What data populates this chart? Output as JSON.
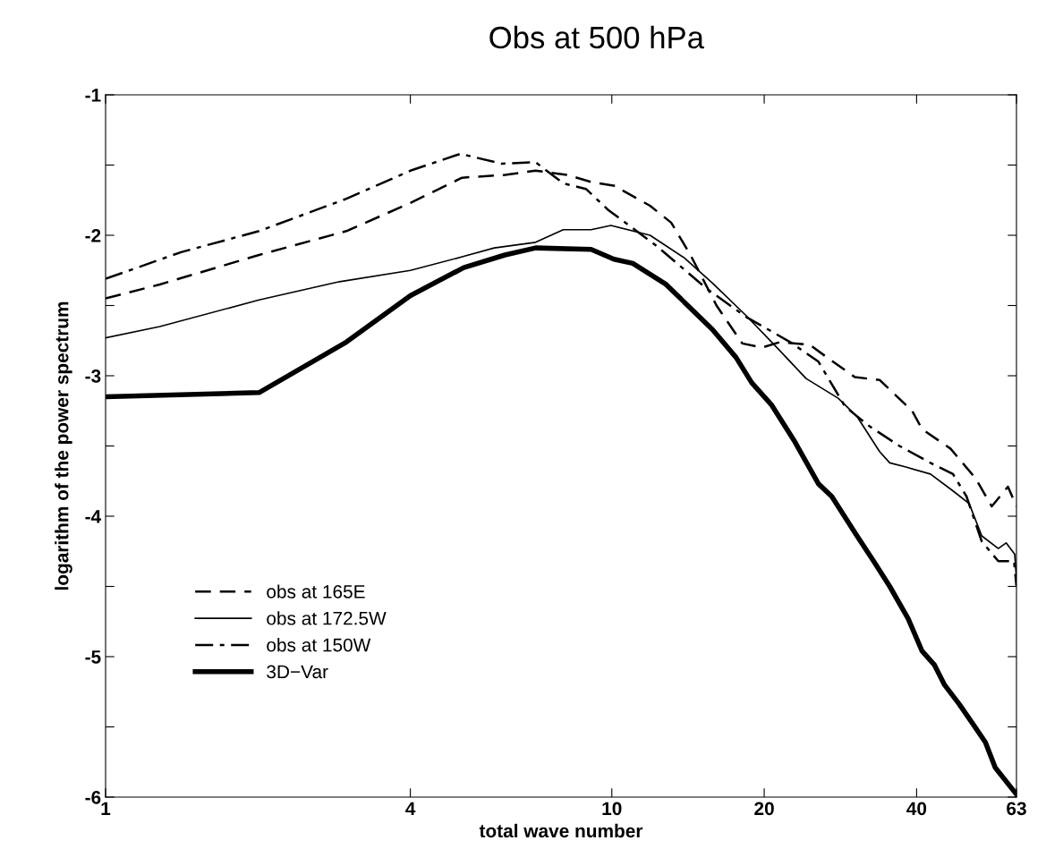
{
  "chart_data": {
    "type": "line",
    "title": "Obs at 500 hPa",
    "xlabel": "total wave number",
    "ylabel": "logarithm of the power spectrum",
    "log": "x",
    "xlim": [
      1,
      63
    ],
    "ylim": [
      -6,
      -1
    ],
    "xticks": [
      1,
      4,
      10,
      20,
      40,
      63
    ],
    "yticks": [
      -6,
      {
        "value": -5.5,
        "label": null
      },
      -5,
      {
        "value": -4.5,
        "label": null
      },
      -4,
      {
        "value": -3.5,
        "label": null
      },
      -3,
      {
        "value": -2.5,
        "label": null
      },
      -2,
      {
        "value": -1.5,
        "label": null
      },
      -1
    ],
    "grid": false,
    "legend": "lower left",
    "marker": "none",
    "series": [
      {
        "name": "obs at 165E",
        "color": "#000000",
        "line_style": "dashed",
        "x": [
          1,
          1.28,
          2.01,
          2.99,
          4.0,
          5.06,
          6.15,
          7.07,
          8.16,
          9.1,
          10.2,
          10.5,
          11.9,
          13.1,
          14.3,
          16.1,
          18.1,
          19.8,
          21.5,
          24.6,
          26.4,
          30.2,
          33.8,
          39.2,
          41.0,
          46.7,
          52.3,
          56.3,
          60.6,
          63
        ],
        "values": [
          -2.45,
          -2.35,
          -2.14,
          -1.97,
          -1.77,
          -1.59,
          -1.57,
          -1.54,
          -1.57,
          -1.62,
          -1.65,
          -1.68,
          -1.79,
          -1.91,
          -2.14,
          -2.5,
          -2.77,
          -2.8,
          -2.76,
          -2.78,
          -2.86,
          -3.01,
          -3.03,
          -3.25,
          -3.38,
          -3.52,
          -3.73,
          -3.93,
          -3.79,
          -3.93
        ]
      },
      {
        "name": "obs at 172.5W",
        "color": "#000000",
        "line_style": "solid",
        "x": [
          1,
          1.28,
          2.01,
          2.9,
          4.0,
          5.1,
          5.86,
          7.07,
          8.02,
          9.1,
          9.96,
          11.9,
          13.9,
          15.8,
          18.4,
          21.2,
          24.2,
          28.0,
          30.5,
          33.8,
          35.4,
          38.1,
          42.6,
          47.2,
          50.8,
          53.8,
          58.0,
          60.1,
          62.5,
          63
        ],
        "values": [
          -2.73,
          -2.65,
          -2.46,
          -2.33,
          -2.25,
          -2.15,
          -2.09,
          -2.05,
          -1.96,
          -1.96,
          -1.93,
          -2.0,
          -2.16,
          -2.34,
          -2.57,
          -2.8,
          -3.02,
          -3.16,
          -3.29,
          -3.54,
          -3.62,
          -3.65,
          -3.7,
          -3.82,
          -3.91,
          -4.14,
          -4.23,
          -4.19,
          -4.27,
          -4.45
        ]
      },
      {
        "name": "obs at 150W",
        "color": "#000000",
        "line_style": "dashdot",
        "x": [
          1,
          1.41,
          2.01,
          2.99,
          4.0,
          5.02,
          6.06,
          7.07,
          8.02,
          8.89,
          9.84,
          12.2,
          15.4,
          18.4,
          22.5,
          25.6,
          28.9,
          32.3,
          37.0,
          42.6,
          47.2,
          50.2,
          53.8,
          58.0,
          62.3,
          63
        ],
        "values": [
          -2.31,
          -2.12,
          -1.97,
          -1.74,
          -1.54,
          -1.42,
          -1.49,
          -1.48,
          -1.63,
          -1.67,
          -1.82,
          -2.07,
          -2.38,
          -2.58,
          -2.76,
          -2.9,
          -3.22,
          -3.36,
          -3.5,
          -3.62,
          -3.7,
          -3.86,
          -4.18,
          -4.32,
          -4.32,
          -4.5
        ]
      },
      {
        "name": "3D−Var",
        "color": "#000000",
        "line_style": "solid",
        "x": [
          1,
          2.01,
          2.99,
          4.0,
          5.1,
          6.15,
          7.07,
          9.1,
          10.1,
          11.0,
          12.8,
          15.8,
          17.6,
          18.9,
          20.7,
          22.9,
          25.6,
          27.2,
          30.5,
          32.9,
          35.4,
          38.5,
          41.0,
          43.4,
          45.4,
          48.6,
          51.7,
          54.7,
          57.2,
          63
        ],
        "values": [
          -3.15,
          -3.12,
          -2.76,
          -2.43,
          -2.23,
          -2.14,
          -2.09,
          -2.1,
          -2.17,
          -2.2,
          -2.35,
          -2.67,
          -2.87,
          -3.05,
          -3.21,
          -3.46,
          -3.77,
          -3.86,
          -4.14,
          -4.32,
          -4.5,
          -4.73,
          -4.96,
          -5.06,
          -5.2,
          -5.34,
          -5.48,
          -5.61,
          -5.79,
          -5.98
        ]
      }
    ]
  }
}
